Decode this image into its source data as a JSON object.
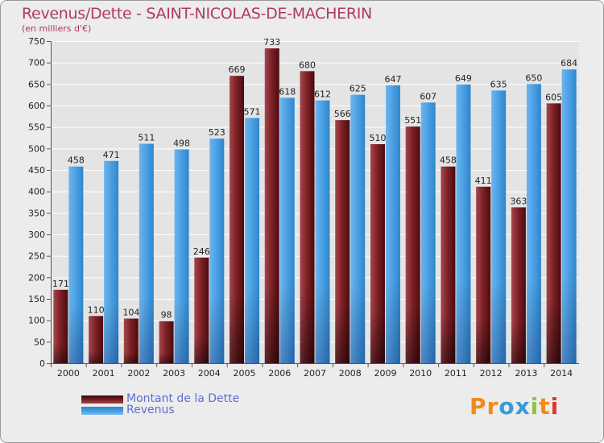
{
  "chart_data": {
    "type": "bar",
    "title": "Revenus/Dette - SAINT-NICOLAS-DE-MACHERIN",
    "subtitle": "(en milliers d'€)",
    "xlabel": "",
    "ylabel": "",
    "ylim": [
      0,
      750
    ],
    "yticks": [
      0,
      50,
      100,
      150,
      200,
      250,
      300,
      350,
      400,
      450,
      500,
      550,
      600,
      650,
      700,
      750
    ],
    "grid": true,
    "legend_position": "bottom-left",
    "categories": [
      "2000",
      "2001",
      "2002",
      "2003",
      "2004",
      "2005",
      "2006",
      "2007",
      "2008",
      "2009",
      "2010",
      "2011",
      "2012",
      "2013",
      "2014"
    ],
    "series": [
      {
        "name": "Montant de la Dette",
        "color": "#7b1f24",
        "values": [
          171,
          110,
          104,
          98,
          246,
          669,
          733,
          680,
          566,
          510,
          551,
          458,
          411,
          363,
          605
        ]
      },
      {
        "name": "Revenus",
        "color": "#4a9fe3",
        "values": [
          458,
          471,
          511,
          498,
          523,
          571,
          618,
          612,
          625,
          647,
          607,
          649,
          635,
          650,
          684
        ]
      }
    ]
  },
  "legend": {
    "debt_label": "Montant de la Dette",
    "revenue_label": "Revenus"
  },
  "brand": {
    "letters": [
      "P",
      "r",
      "o",
      "x",
      "i",
      "t",
      "i"
    ],
    "colors": [
      "#f08a1c",
      "#f08a1c",
      "#3a9ad9",
      "#3a9ad9",
      "#8cc63f",
      "#f08a1c",
      "#e0352b"
    ]
  }
}
